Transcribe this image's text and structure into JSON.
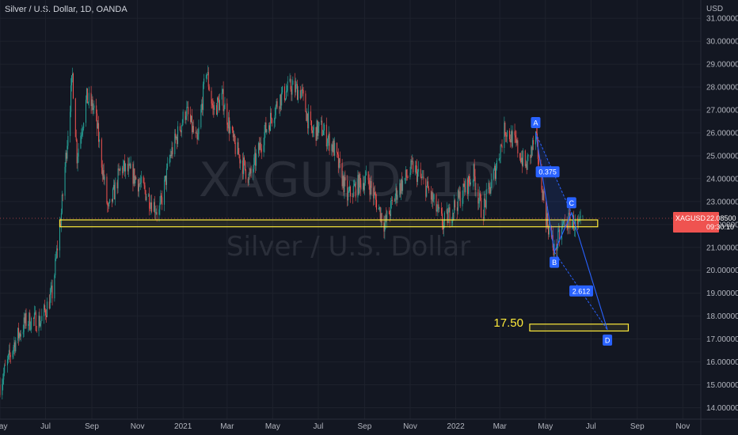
{
  "header": {
    "title": "Silver / U.S. Dollar, 1D, OANDA"
  },
  "watermark": {
    "symbol": "XAGUSD, 1D",
    "name": "Silver / U.S. Dollar"
  },
  "price_label": {
    "symbol": "XAGUSD",
    "price": "22.08500",
    "countdown": "09:30:10"
  },
  "colors": {
    "background": "#131722",
    "grid": "#1e222d",
    "up": "#26a69a",
    "down": "#ef5350",
    "zone": "#ffeb3b",
    "pattern": "#2962ff"
  },
  "chart_data": {
    "type": "candlestick",
    "currency_label": "USD",
    "ylim": [
      13.5,
      31.8
    ],
    "xlim": [
      "2020-05-01",
      "2022-11-25"
    ],
    "y_ticks": [
      "14.00000",
      "15.00000",
      "16.00000",
      "17.00000",
      "18.00000",
      "19.00000",
      "20.00000",
      "21.00000",
      "22.00000",
      "23.00000",
      "24.00000",
      "25.00000",
      "26.00000",
      "27.00000",
      "28.00000",
      "29.00000",
      "30.00000",
      "31.00000"
    ],
    "x_ticks": [
      {
        "label": "May",
        "date": "2020-05-01"
      },
      {
        "label": "Jul",
        "date": "2020-07-01"
      },
      {
        "label": "Sep",
        "date": "2020-09-01"
      },
      {
        "label": "Nov",
        "date": "2020-11-01"
      },
      {
        "label": "2021",
        "date": "2021-01-01"
      },
      {
        "label": "Mar",
        "date": "2021-03-01"
      },
      {
        "label": "May",
        "date": "2021-05-01"
      },
      {
        "label": "Jul",
        "date": "2021-07-01"
      },
      {
        "label": "Sep",
        "date": "2021-09-01"
      },
      {
        "label": "Nov",
        "date": "2021-11-01"
      },
      {
        "label": "2022",
        "date": "2022-01-01"
      },
      {
        "label": "Mar",
        "date": "2022-03-01"
      },
      {
        "label": "May",
        "date": "2022-05-01"
      },
      {
        "label": "Jul",
        "date": "2022-07-01"
      },
      {
        "label": "Sep",
        "date": "2022-09-01"
      },
      {
        "label": "Nov",
        "date": "2022-11-01"
      }
    ],
    "price_path": [
      [
        "2020-05-01",
        15.0
      ],
      [
        "2020-05-20",
        16.8
      ],
      [
        "2020-06-05",
        17.8
      ],
      [
        "2020-06-25",
        17.8
      ],
      [
        "2020-07-10",
        19.0
      ],
      [
        "2020-07-22",
        22.5
      ],
      [
        "2020-08-06",
        28.5
      ],
      [
        "2020-08-12",
        25.0
      ],
      [
        "2020-08-25",
        27.5
      ],
      [
        "2020-09-05",
        27.0
      ],
      [
        "2020-09-23",
        22.5
      ],
      [
        "2020-10-10",
        24.5
      ],
      [
        "2020-10-25",
        24.2
      ],
      [
        "2020-11-10",
        23.5
      ],
      [
        "2020-11-30",
        22.5
      ],
      [
        "2020-12-15",
        25.0
      ],
      [
        "2021-01-05",
        27.0
      ],
      [
        "2021-01-20",
        25.5
      ],
      [
        "2021-02-01",
        28.8
      ],
      [
        "2021-02-10",
        27.0
      ],
      [
        "2021-02-23",
        27.5
      ],
      [
        "2021-03-10",
        25.5
      ],
      [
        "2021-03-31",
        24.0
      ],
      [
        "2021-04-20",
        26.0
      ],
      [
        "2021-05-10",
        27.5
      ],
      [
        "2021-05-25",
        28.0
      ],
      [
        "2021-06-08",
        27.8
      ],
      [
        "2021-06-22",
        26.0
      ],
      [
        "2021-07-05",
        26.2
      ],
      [
        "2021-07-22",
        25.3
      ],
      [
        "2021-08-09",
        23.2
      ],
      [
        "2021-08-25",
        23.8
      ],
      [
        "2021-09-05",
        24.0
      ],
      [
        "2021-09-28",
        22.0
      ],
      [
        "2021-10-15",
        23.5
      ],
      [
        "2021-11-05",
        24.5
      ],
      [
        "2021-11-25",
        23.5
      ],
      [
        "2021-12-15",
        22.0
      ],
      [
        "2022-01-03",
        23.0
      ],
      [
        "2022-01-25",
        24.2
      ],
      [
        "2022-02-05",
        22.5
      ],
      [
        "2022-02-20",
        24.0
      ],
      [
        "2022-03-08",
        26.2
      ],
      [
        "2022-03-22",
        25.5
      ],
      [
        "2022-04-05",
        24.5
      ],
      [
        "2022-04-18",
        25.8
      ],
      [
        "2022-05-01",
        22.5
      ],
      [
        "2022-05-13",
        20.8
      ],
      [
        "2022-05-25",
        22.0
      ],
      [
        "2022-06-05",
        22.2
      ],
      [
        "2022-06-14",
        21.8
      ],
      [
        "2022-06-20",
        22.08
      ]
    ],
    "support_zone": {
      "low": 21.9,
      "high": 22.2,
      "start": "2020-07-20",
      "end": "2022-07-10"
    },
    "target_zone": {
      "low": 17.35,
      "high": 17.65,
      "start": "2022-04-10",
      "end": "2022-08-20",
      "label": "17.50"
    },
    "harmonic_pattern": {
      "points": [
        {
          "label": "A",
          "date": "2022-04-18",
          "price": 26.0
        },
        {
          "label": "B",
          "date": "2022-05-13",
          "price": 20.8
        },
        {
          "label": "C",
          "date": "2022-06-05",
          "price": 22.5
        },
        {
          "label": "D",
          "date": "2022-07-23",
          "price": 17.4
        }
      ],
      "ratios": [
        {
          "label": "0.375",
          "date": "2022-05-04",
          "price": 24.3
        },
        {
          "label": "2.612",
          "date": "2022-06-18",
          "price": 19.1
        }
      ]
    }
  }
}
